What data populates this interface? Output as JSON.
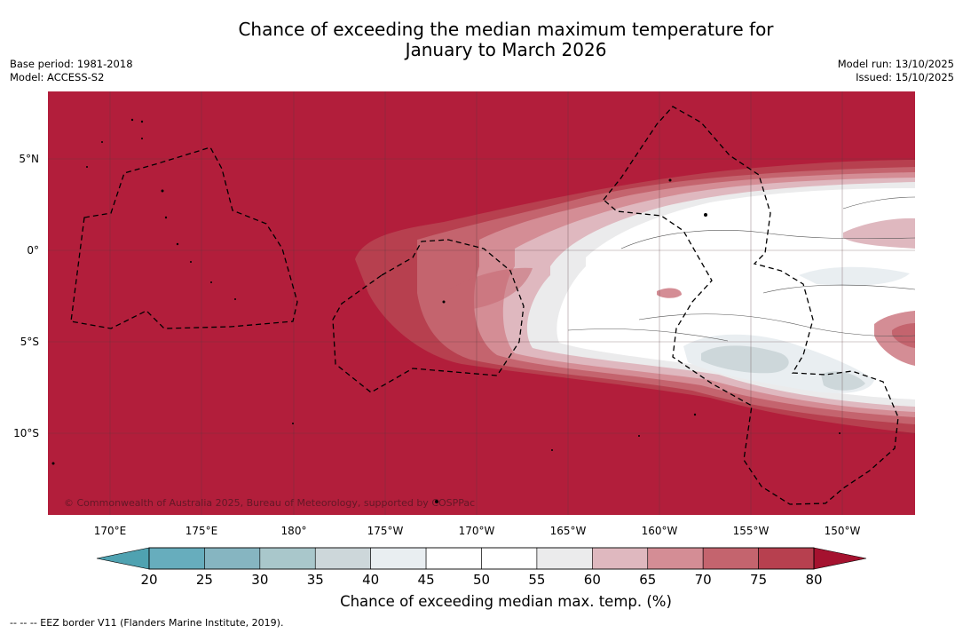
{
  "title": {
    "line1": "Chance of exceeding the median maximum temperature for",
    "line2": "January to March 2026"
  },
  "meta_left": {
    "base_period": "Base period: 1981-2018",
    "model": "Model: ACCESS-S2"
  },
  "meta_right": {
    "model_run": "Model run: 13/10/2025",
    "issued": "Issued: 15/10/2025"
  },
  "map": {
    "lat_labels": [
      "5°N",
      "0°",
      "5°S",
      "10°S"
    ],
    "lon_labels": [
      "170°E",
      "175°E",
      "180°",
      "175°W",
      "170°W",
      "165°W",
      "160°W",
      "155°W",
      "150°W"
    ],
    "copyright": "© Commonwealth of Australia 2025, Bureau of Meteorology, supported by COSPPac",
    "background_color": "#b21e3b"
  },
  "colorbar": {
    "ticks": [
      "20",
      "25",
      "30",
      "35",
      "40",
      "45",
      "50",
      "55",
      "60",
      "65",
      "70",
      "75",
      "80"
    ],
    "colors": [
      "#67adbd",
      "#86b5c1",
      "#a9c7cb",
      "#cdd7da",
      "#e9eef1",
      "#ffffff",
      "#ffffff",
      "#ebebec",
      "#dfb8bf",
      "#d48d95",
      "#c4646e",
      "#b7404f"
    ],
    "under_color": "#4fa2b1",
    "over_color": "#a5122f",
    "label": "Chance of exceeding median max. temp. (%)"
  },
  "footnote": "--  --  -- EEZ border V11 (Flanders Marine Institute, 2019)."
}
